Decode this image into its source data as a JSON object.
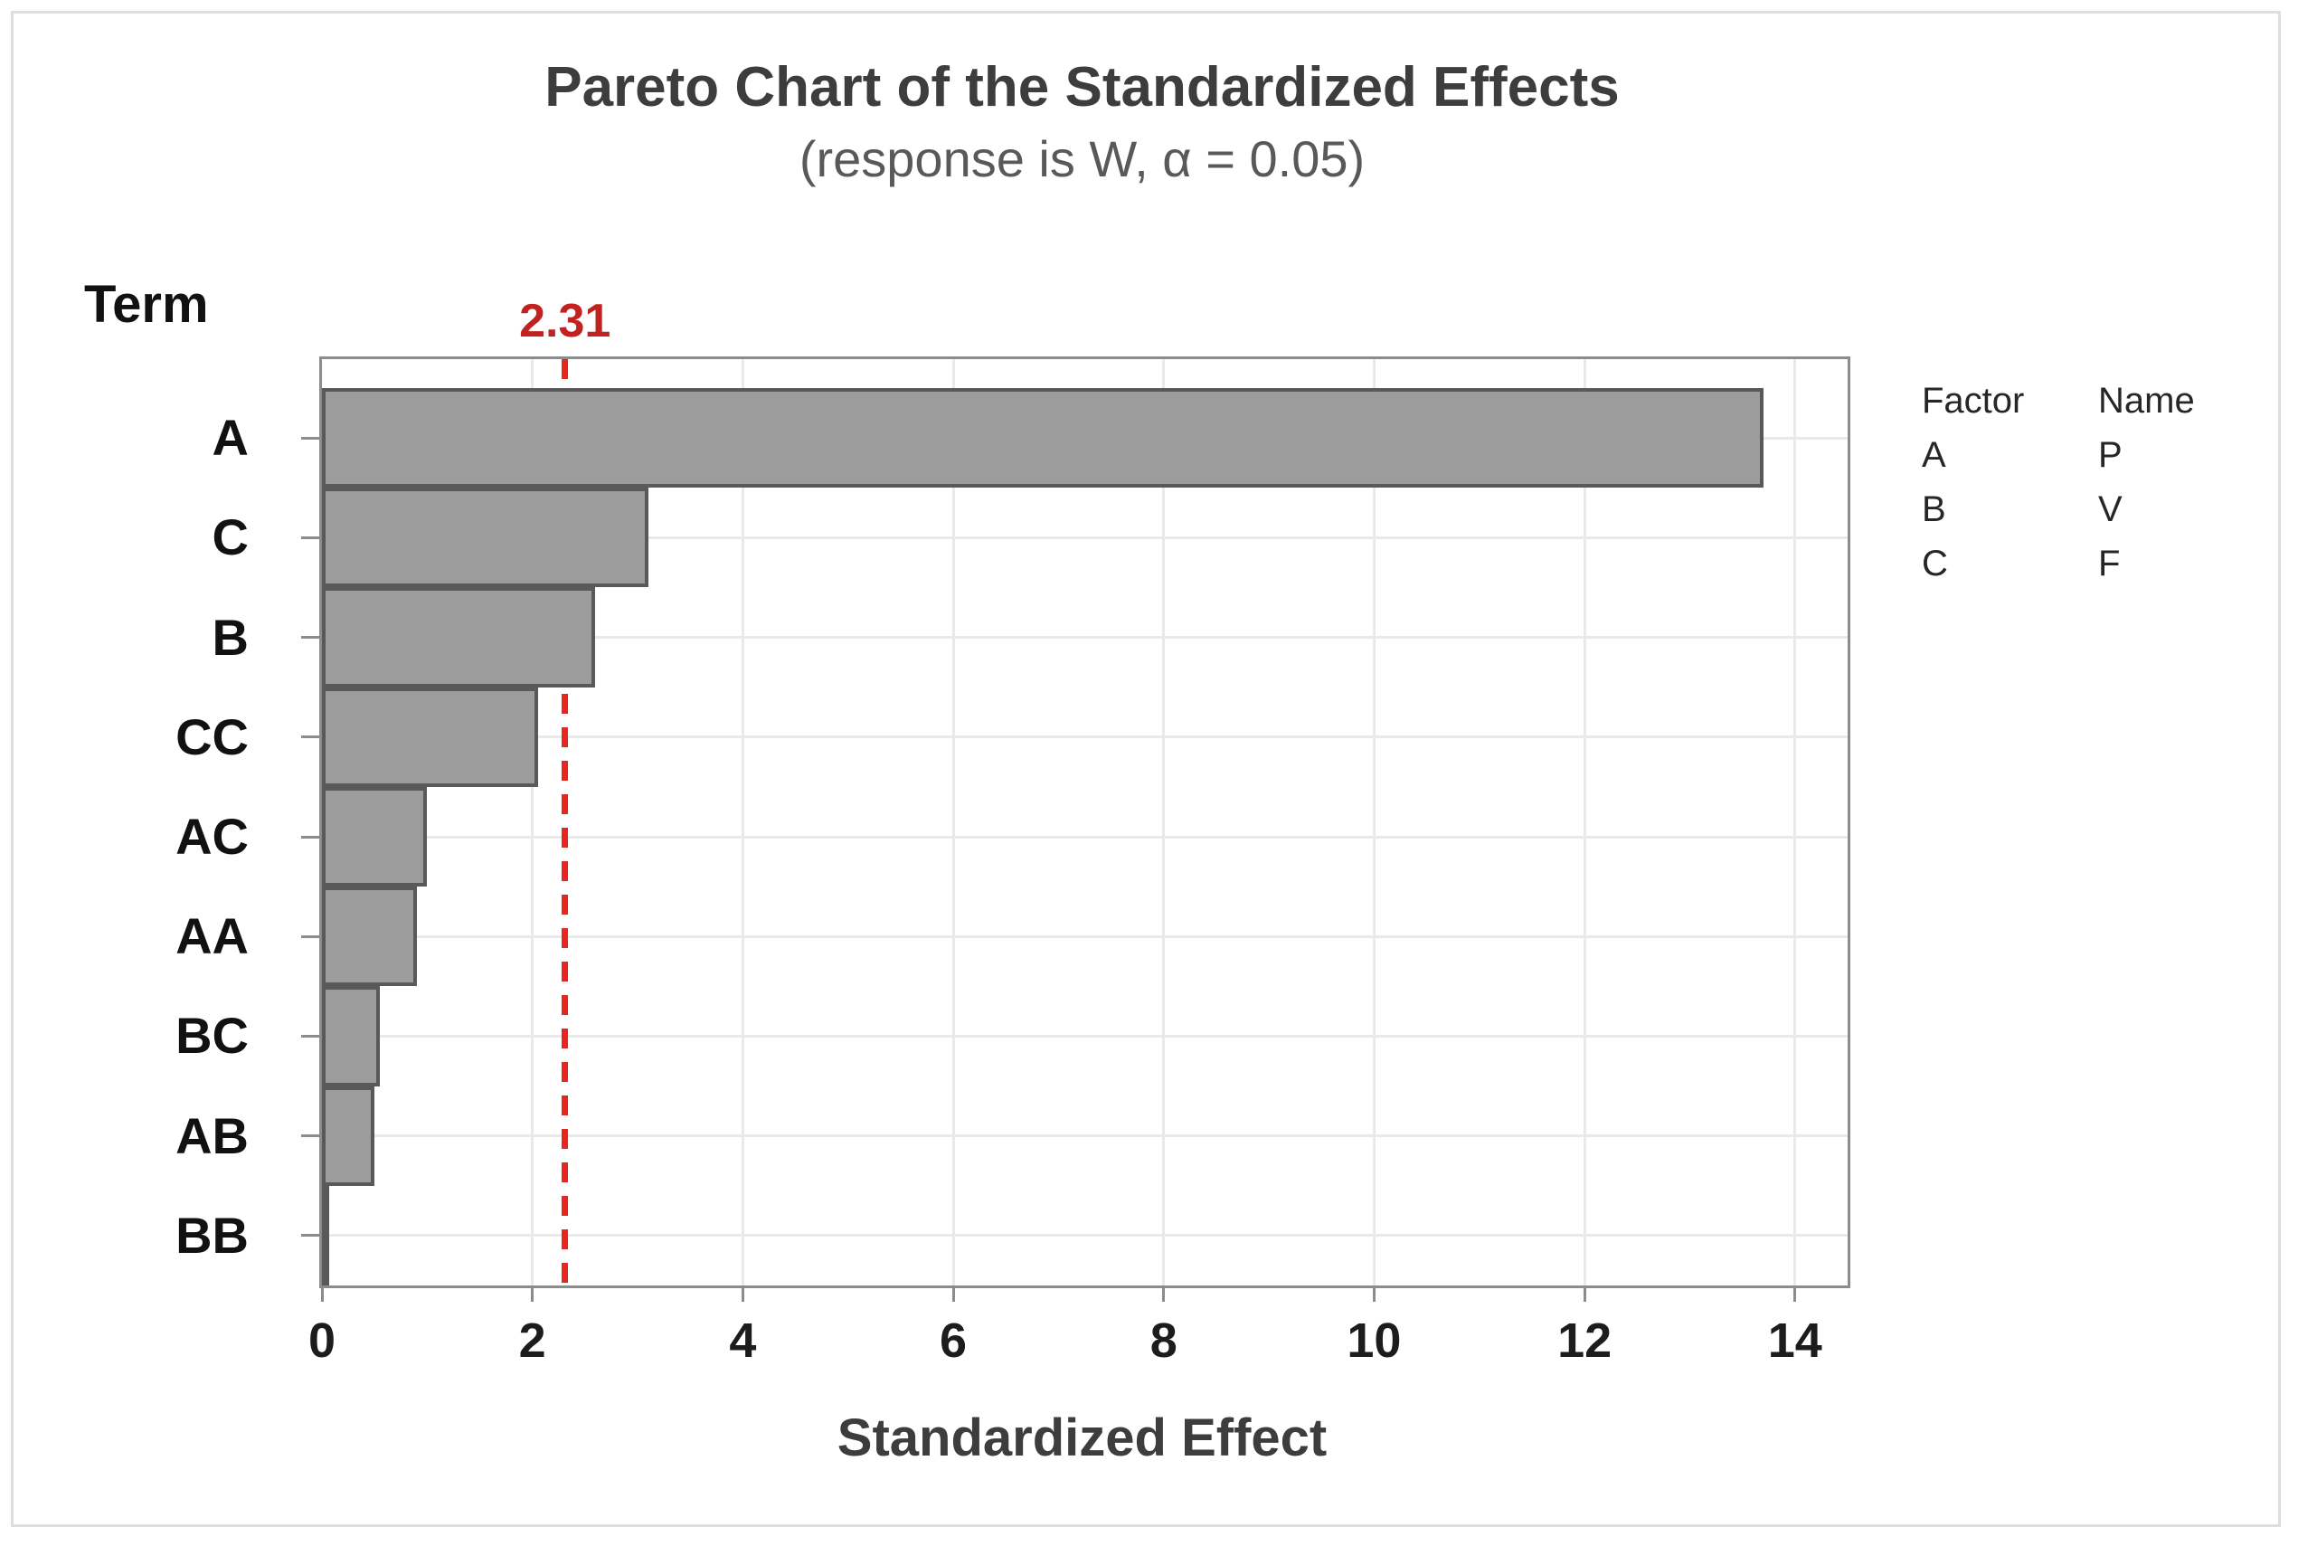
{
  "chart_data": {
    "type": "bar",
    "orientation": "horizontal",
    "title": "Pareto Chart of the Standardized Effects",
    "subtitle": "(response is W, α = 0.05)",
    "term_axis_label": "Term",
    "xlabel": "Standardized Effect",
    "categories": [
      "A",
      "C",
      "B",
      "CC",
      "AC",
      "AA",
      "BC",
      "AB",
      "BB"
    ],
    "values": [
      13.7,
      3.1,
      2.6,
      2.05,
      1.0,
      0.9,
      0.55,
      0.5,
      0.07
    ],
    "x_ticks": [
      0,
      2,
      4,
      6,
      8,
      10,
      12,
      14
    ],
    "x_tick_labels": [
      "0",
      "2",
      "4",
      "6",
      "8",
      "10",
      "12",
      "14"
    ],
    "xlim": [
      0,
      14.5
    ],
    "grid": true,
    "reference_line": {
      "value": 2.31,
      "label": "2.31",
      "style": "dashed"
    },
    "legend": {
      "position": "right",
      "headers": [
        "Factor",
        "Name"
      ],
      "rows": [
        {
          "factor": "A",
          "name": "P"
        },
        {
          "factor": "B",
          "name": "V"
        },
        {
          "factor": "C",
          "name": "F"
        }
      ]
    },
    "colors": {
      "bar_fill": "#9c9c9c",
      "bar_border": "#595959",
      "reference_line": "#e8261d",
      "reference_label": "#c2221f",
      "grid_line": "#e9e9e9",
      "axis": "#8c8c8c",
      "title_text": "#3d3d3d",
      "subtitle_text": "#595959"
    }
  }
}
